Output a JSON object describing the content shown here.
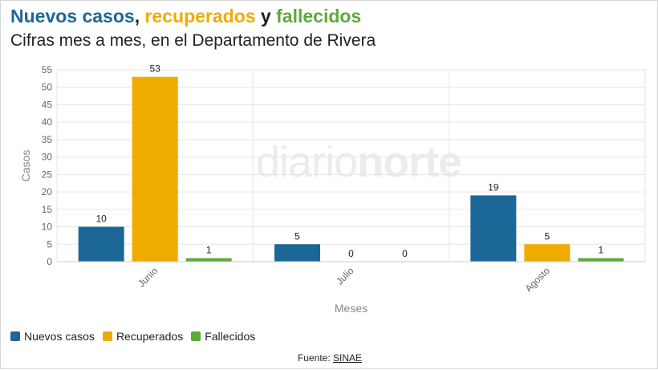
{
  "header": {
    "title_part1": "Nuevos casos",
    "title_sep1": ", ",
    "title_part2": "recuperados",
    "title_sep2": " y ",
    "title_part3": "fallecidos",
    "subtitle": "Cifras mes a mes, en el Departamento de Rivera"
  },
  "watermark": {
    "light": "diario",
    "bold": "norte"
  },
  "chart_data": {
    "type": "bar",
    "categories": [
      "Junio",
      "Julio",
      "Agosto"
    ],
    "series": [
      {
        "name": "Nuevos casos",
        "values": [
          10,
          5,
          19
        ],
        "color": "#1b6797"
      },
      {
        "name": "Recuperados",
        "values": [
          53,
          0,
          5
        ],
        "color": "#f0ab00"
      },
      {
        "name": "Fallecidos",
        "values": [
          1,
          0,
          1
        ],
        "color": "#5fa83a"
      }
    ],
    "xlabel": "Meses",
    "ylabel": "Casos",
    "ylim": [
      0,
      55
    ],
    "yticks": [
      0,
      5,
      10,
      15,
      20,
      25,
      30,
      35,
      40,
      45,
      50,
      55
    ],
    "grid": true,
    "legend_position": "bottom-left"
  },
  "footer": {
    "source_label": "Fuente: ",
    "source_link": "SINAE"
  }
}
